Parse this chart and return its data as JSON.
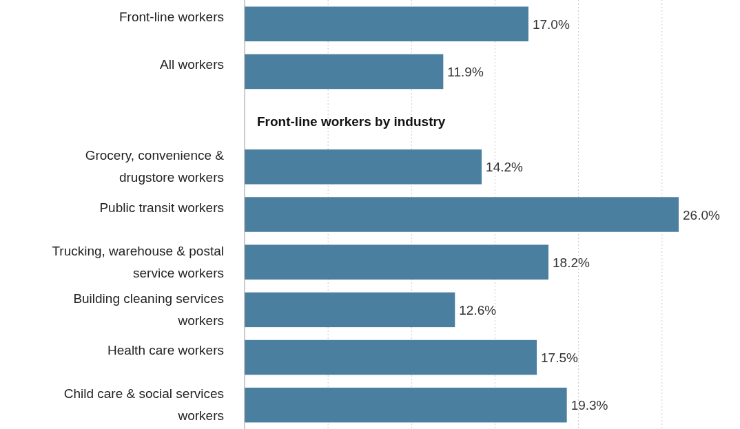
{
  "chart_data": {
    "type": "bar",
    "orientation": "horizontal",
    "relative": false,
    "categories": [
      "Front-line workers",
      "All workers",
      null,
      "Grocery, convenience & drugstore workers",
      "Public transit workers",
      "Trucking, warehouse & postal service workers",
      "Building cleaning services workers",
      "Health care workers",
      "Child care & social services workers"
    ],
    "values": [
      17.0,
      11.9,
      null,
      14.2,
      26.0,
      18.2,
      12.6,
      17.5,
      19.3
    ],
    "value_labels": [
      "17.0%",
      "11.9%",
      null,
      "14.2%",
      "26.0%",
      "18.2%",
      "12.6%",
      "17.5%",
      "19.3%"
    ],
    "color": "#4a7fa0",
    "xticks": [
      {
        "value": 0,
        "label": null
      },
      {
        "value": 5,
        "label": null
      },
      {
        "value": 10,
        "label": null
      },
      {
        "value": 15,
        "label": null
      },
      {
        "value": 20,
        "label": null
      },
      {
        "value": 25,
        "label": null
      }
    ],
    "grid": "x",
    "tick_labels": "y",
    "annotations": [
      "Front-line workers by industry"
    ]
  }
}
